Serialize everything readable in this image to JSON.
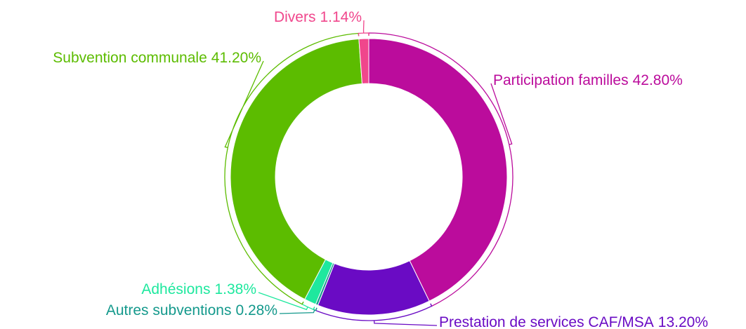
{
  "chart_data": {
    "type": "donut",
    "categories": [
      "Participation familles",
      "Prestation de services CAF/MSA",
      "Autres subventions",
      "Adhésions",
      "Subvention communale",
      "Divers"
    ],
    "values": [
      42.8,
      13.2,
      0.28,
      1.38,
      41.2,
      1.14
    ],
    "value_labels": [
      "42.80%",
      "13.20%",
      "0.28%",
      "1.38%",
      "41.20%",
      "1.14%"
    ],
    "colors": [
      "#bb0c9c",
      "#6a0bc4",
      "#14998c",
      "#1ee89e",
      "#5cbc00",
      "#f0468c"
    ]
  }
}
